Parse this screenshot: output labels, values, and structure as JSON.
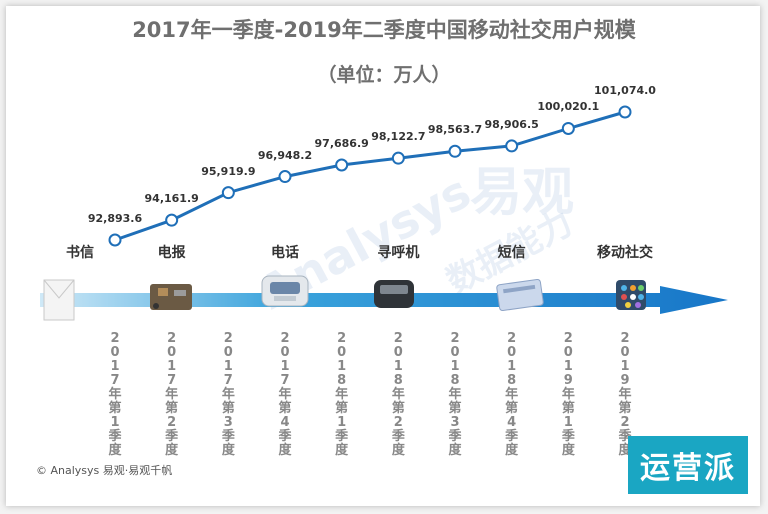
{
  "chart_data": {
    "type": "line",
    "title": "2017年一季度-2019年二季度中国移动社交用户规模",
    "subtitle": "（单位：万人）",
    "categories": [
      "2017年第1季度",
      "2017年第2季度",
      "2017年第3季度",
      "2017年第4季度",
      "2018年第1季度",
      "2018年第2季度",
      "2018年第3季度",
      "2018年第4季度",
      "2019年第1季度",
      "2019年第2季度"
    ],
    "values": [
      92893.6,
      94161.9,
      95919.9,
      96948.2,
      97686.9,
      98122.7,
      98563.7,
      98906.5,
      100020.1,
      101074.0
    ],
    "value_labels": [
      "92,893.6",
      "94,161.9",
      "95,919.9",
      "96,948.2",
      "97,686.9",
      "98,122.7",
      "98,563.7",
      "98,906.5",
      "100,020.1",
      "101,074.0"
    ],
    "series_name": "中国移动社交用户规模",
    "line_color": "#1f6fb8",
    "marker_fill": "#ffffff",
    "stages": [
      {
        "label": "书信",
        "index": 0
      },
      {
        "label": "电报",
        "index": 1
      },
      {
        "label": "电话",
        "index": 3
      },
      {
        "label": "寻呼机",
        "index": 5
      },
      {
        "label": "短信",
        "index": 7
      },
      {
        "label": "移动社交",
        "index": 9
      }
    ],
    "xlabel": "",
    "ylabel": "",
    "ylim": [
      91000,
      103000
    ]
  },
  "watermark": {
    "brand": "Analysys",
    "cn": "易观",
    "slogan": "数据能力"
  },
  "footer": {
    "copyright": "© Analysys 易观·易观千帆",
    "badge": "运营派"
  }
}
